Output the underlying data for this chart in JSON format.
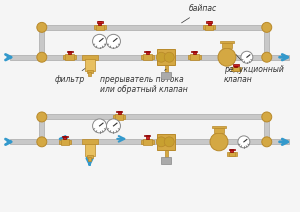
{
  "bg_color": "#f5f5f5",
  "pipe_color": "#c8c8c8",
  "pipe_edge": "#aaaaaa",
  "brass_color": "#d4a843",
  "brass_edge": "#b8892a",
  "red_color": "#cc2222",
  "blue_arrow": "#3399cc",
  "text_color": "#333333",
  "title": "",
  "labels_top": {
    "bypass": "байпас",
    "filter": "фильтр",
    "flow_switch": "прерыватель потока\nили обратный клапан",
    "reducing": "редукционный\nклапан"
  }
}
